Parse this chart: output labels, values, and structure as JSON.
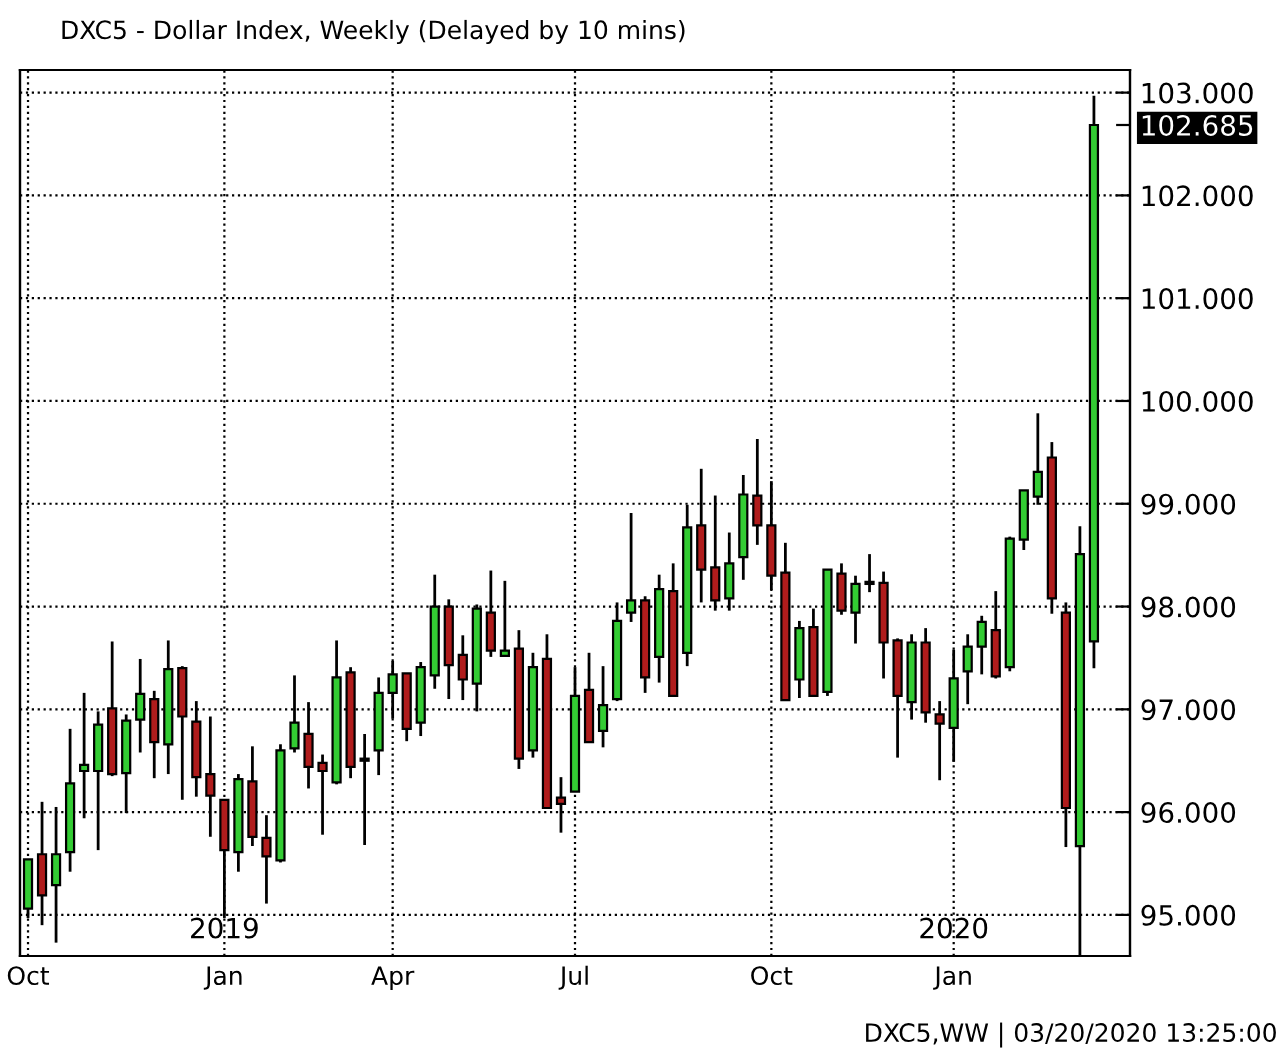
{
  "chart_data": {
    "type": "candlestick",
    "title": "DXC5 - Dollar Index, Weekly (Delayed by 10 mins)",
    "x": [
      "2018-10-01",
      "2018-10-08",
      "2018-10-15",
      "2018-10-22",
      "2018-10-29",
      "2018-11-05",
      "2018-11-12",
      "2018-11-19",
      "2018-11-26",
      "2018-12-03",
      "2018-12-10",
      "2018-12-17",
      "2018-12-24",
      "2018-12-31",
      "2019-01-07",
      "2019-01-14",
      "2019-01-21",
      "2019-01-28",
      "2019-02-04",
      "2019-02-11",
      "2019-02-18",
      "2019-02-25",
      "2019-03-04",
      "2019-03-11",
      "2019-03-18",
      "2019-03-25",
      "2019-04-01",
      "2019-04-08",
      "2019-04-15",
      "2019-04-22",
      "2019-04-29",
      "2019-05-06",
      "2019-05-13",
      "2019-05-20",
      "2019-05-27",
      "2019-06-03",
      "2019-06-10",
      "2019-06-17",
      "2019-06-24",
      "2019-07-01",
      "2019-07-08",
      "2019-07-15",
      "2019-07-22",
      "2019-07-29",
      "2019-08-05",
      "2019-08-12",
      "2019-08-19",
      "2019-08-26",
      "2019-09-02",
      "2019-09-09",
      "2019-09-16",
      "2019-09-23",
      "2019-09-30",
      "2019-10-07",
      "2019-10-14",
      "2019-10-21",
      "2019-10-28",
      "2019-11-04",
      "2019-11-11",
      "2019-11-18",
      "2019-11-25",
      "2019-12-02",
      "2019-12-09",
      "2019-12-16",
      "2019-12-23",
      "2019-12-30",
      "2020-01-06",
      "2020-01-13",
      "2020-01-20",
      "2020-01-27",
      "2020-02-03",
      "2020-02-10",
      "2020-02-17",
      "2020-02-24",
      "2020-03-02",
      "2020-03-09",
      "2020-03-16"
    ],
    "ohlc": [
      [
        95.06,
        95.54,
        94.97,
        95.54
      ],
      [
        95.59,
        96.1,
        94.9,
        95.19
      ],
      [
        95.29,
        96.05,
        94.73,
        95.59
      ],
      [
        95.61,
        96.81,
        95.42,
        96.28
      ],
      [
        96.4,
        97.16,
        95.94,
        96.46
      ],
      [
        96.4,
        96.98,
        95.63,
        96.85
      ],
      [
        97.01,
        97.66,
        96.35,
        96.37
      ],
      [
        96.38,
        96.95,
        95.99,
        96.89
      ],
      [
        96.9,
        97.49,
        96.58,
        97.15
      ],
      [
        97.1,
        97.18,
        96.33,
        96.68
      ],
      [
        96.66,
        97.67,
        96.37,
        97.39
      ],
      [
        97.4,
        97.42,
        96.12,
        96.93
      ],
      [
        96.88,
        97.08,
        96.15,
        96.34
      ],
      [
        96.37,
        96.93,
        95.76,
        96.16
      ],
      [
        96.12,
        96.12,
        94.97,
        95.63
      ],
      [
        95.61,
        96.37,
        95.42,
        96.32
      ],
      [
        96.3,
        96.64,
        95.67,
        95.76
      ],
      [
        95.75,
        95.97,
        95.11,
        95.57
      ],
      [
        95.53,
        96.66,
        95.51,
        96.6
      ],
      [
        96.62,
        97.33,
        96.58,
        96.87
      ],
      [
        96.76,
        97.07,
        96.23,
        96.44
      ],
      [
        96.48,
        96.56,
        95.78,
        96.4
      ],
      [
        96.29,
        97.67,
        96.27,
        97.31
      ],
      [
        97.36,
        97.41,
        96.33,
        96.44
      ],
      [
        96.51,
        96.76,
        95.68,
        96.5
      ],
      [
        96.6,
        97.31,
        96.36,
        97.16
      ],
      [
        97.16,
        97.47,
        96.91,
        97.34
      ],
      [
        97.35,
        97.35,
        96.69,
        96.81
      ],
      [
        96.87,
        97.46,
        96.74,
        97.41
      ],
      [
        97.33,
        98.31,
        97.2,
        98.0
      ],
      [
        98.0,
        98.07,
        97.1,
        97.43
      ],
      [
        97.53,
        97.72,
        97.09,
        97.29
      ],
      [
        97.25,
        98.02,
        96.98,
        97.98
      ],
      [
        97.94,
        98.35,
        97.51,
        97.57
      ],
      [
        97.52,
        98.25,
        97.51,
        97.57
      ],
      [
        97.59,
        97.77,
        96.42,
        96.52
      ],
      [
        96.6,
        97.55,
        96.53,
        97.41
      ],
      [
        97.49,
        97.73,
        96.04,
        96.04
      ],
      [
        96.14,
        96.34,
        95.8,
        96.08
      ],
      [
        96.2,
        97.41,
        96.2,
        97.13
      ],
      [
        97.19,
        97.55,
        96.68,
        96.68
      ],
      [
        96.79,
        97.42,
        96.63,
        97.04
      ],
      [
        97.1,
        98.04,
        97.08,
        97.86
      ],
      [
        97.94,
        98.91,
        97.85,
        98.06
      ],
      [
        98.06,
        98.1,
        97.16,
        97.31
      ],
      [
        97.51,
        98.31,
        97.26,
        98.17
      ],
      [
        98.15,
        98.42,
        97.13,
        97.13
      ],
      [
        97.55,
        98.99,
        97.42,
        98.77
      ],
      [
        98.79,
        99.34,
        98.04,
        98.36
      ],
      [
        98.38,
        99.08,
        97.96,
        98.06
      ],
      [
        98.08,
        98.72,
        97.96,
        98.42
      ],
      [
        98.48,
        99.28,
        98.26,
        99.09
      ],
      [
        99.08,
        99.63,
        98.6,
        98.79
      ],
      [
        98.79,
        99.22,
        98.16,
        98.3
      ],
      [
        98.33,
        98.62,
        97.09,
        97.09
      ],
      [
        97.29,
        97.86,
        97.11,
        97.79
      ],
      [
        97.8,
        97.98,
        97.13,
        97.13
      ],
      [
        97.17,
        98.36,
        97.13,
        98.36
      ],
      [
        98.32,
        98.42,
        97.92,
        97.96
      ],
      [
        97.94,
        98.3,
        97.64,
        98.22
      ],
      [
        98.22,
        98.51,
        98.14,
        98.23
      ],
      [
        98.23,
        98.34,
        97.3,
        97.65
      ],
      [
        97.67,
        97.69,
        96.53,
        97.13
      ],
      [
        97.07,
        97.73,
        96.9,
        97.65
      ],
      [
        97.65,
        97.79,
        96.87,
        96.97
      ],
      [
        96.95,
        97.08,
        96.31,
        96.86
      ],
      [
        96.82,
        97.58,
        96.49,
        97.3
      ],
      [
        97.37,
        97.73,
        97.05,
        97.61
      ],
      [
        97.61,
        97.91,
        97.34,
        97.85
      ],
      [
        97.77,
        98.15,
        97.3,
        97.32
      ],
      [
        97.41,
        98.68,
        97.37,
        98.66
      ],
      [
        98.65,
        99.13,
        98.55,
        99.13
      ],
      [
        99.07,
        99.88,
        98.99,
        99.31
      ],
      [
        99.45,
        99.6,
        97.93,
        98.08
      ],
      [
        97.94,
        98.04,
        95.66,
        96.04
      ],
      [
        95.67,
        98.78,
        94.59,
        98.51
      ],
      [
        97.66,
        102.97,
        97.4,
        102.685
      ]
    ],
    "colors": [
      "#33cc33",
      "#b01c1c",
      "#33cc33",
      "#33cc33",
      "#33cc33",
      "#33cc33",
      "#b01c1c",
      "#33cc33",
      "#33cc33",
      "#b01c1c",
      "#33cc33",
      "#b01c1c",
      "#b01c1c",
      "#b01c1c",
      "#b01c1c",
      "#33cc33",
      "#b01c1c",
      "#b01c1c",
      "#33cc33",
      "#33cc33",
      "#b01c1c",
      "#b01c1c",
      "#33cc33",
      "#b01c1c",
      "#b01c1c",
      "#33cc33",
      "#33cc33",
      "#b01c1c",
      "#33cc33",
      "#33cc33",
      "#b01c1c",
      "#b01c1c",
      "#33cc33",
      "#b01c1c",
      "#33cc33",
      "#b01c1c",
      "#33cc33",
      "#b01c1c",
      "#b01c1c",
      "#33cc33",
      "#b01c1c",
      "#33cc33",
      "#33cc33",
      "#33cc33",
      "#b01c1c",
      "#33cc33",
      "#b01c1c",
      "#33cc33",
      "#b01c1c",
      "#b01c1c",
      "#33cc33",
      "#33cc33",
      "#b01c1c",
      "#b01c1c",
      "#b01c1c",
      "#33cc33",
      "#b01c1c",
      "#33cc33",
      "#b01c1c",
      "#33cc33",
      "#33cc33",
      "#b01c1c",
      "#b01c1c",
      "#33cc33",
      "#b01c1c",
      "#b01c1c",
      "#33cc33",
      "#33cc33",
      "#33cc33",
      "#b01c1c",
      "#33cc33",
      "#33cc33",
      "#33cc33",
      "#b01c1c",
      "#b01c1c",
      "#33cc33",
      "#33cc33"
    ],
    "xlim": [
      "2018-09-27",
      "2020-04-03"
    ],
    "xticks": [
      {
        "value": "2018-10-01",
        "label": "Oct"
      },
      {
        "value": "2019-01-07",
        "label": "Jan"
      },
      {
        "value": "2019-04-01",
        "label": "Apr"
      },
      {
        "value": "2019-07-01",
        "label": "Jul"
      },
      {
        "value": "2019-10-07",
        "label": "Oct"
      },
      {
        "value": "2020-01-06",
        "label": "Jan"
      }
    ],
    "ylim": [
      94.6,
      103.22
    ],
    "yticks": [
      {
        "value": 95,
        "label": "95.000"
      },
      {
        "value": 96,
        "label": "96.000"
      },
      {
        "value": 97,
        "label": "97.000"
      },
      {
        "value": 98,
        "label": "98.000"
      },
      {
        "value": 99,
        "label": "99.000"
      },
      {
        "value": 100,
        "label": "100.000"
      },
      {
        "value": 101,
        "label": "101.000"
      },
      {
        "value": 102,
        "label": "102.000"
      },
      {
        "value": 103,
        "label": "103.000"
      },
      {
        "value": 102.685,
        "label": "102.685"
      }
    ],
    "x2lim": [
      "2018-09-27",
      "2020-04-03"
    ],
    "x2ticks": [
      {
        "value": "2019-01-07",
        "label": "2019"
      },
      {
        "value": "2020-01-06",
        "label": "2020"
      }
    ],
    "annotations": [
      "DXC5,WW | 03/20/2020 13:25:00"
    ],
    "grid": true,
    "line_style": "dotted"
  }
}
